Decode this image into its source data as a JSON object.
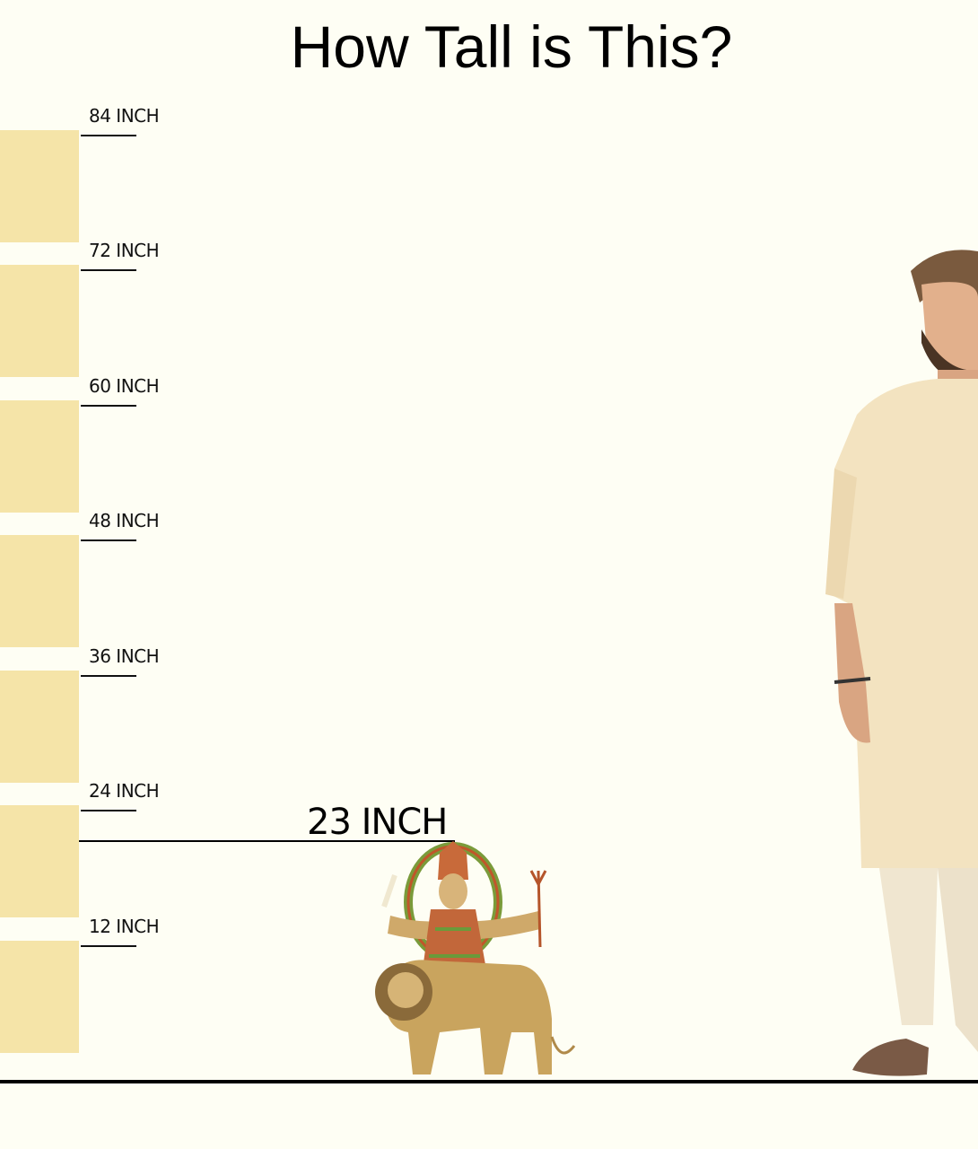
{
  "title": "How Tall is This?",
  "scale": {
    "unit": "INCH",
    "ticks": [
      {
        "value": 84,
        "label": "84 INCH"
      },
      {
        "value": 72,
        "label": "72 INCH"
      },
      {
        "value": 60,
        "label": "60 INCH"
      },
      {
        "value": 48,
        "label": "48 INCH"
      },
      {
        "value": 36,
        "label": "36 INCH"
      },
      {
        "value": 24,
        "label": "24 INCH"
      },
      {
        "value": 12,
        "label": "12 INCH"
      }
    ],
    "bar_color": "#f5e4a8"
  },
  "product": {
    "height_value": 23,
    "height_label": "23 INCH",
    "image": "durga-on-lion-statue"
  },
  "reference": {
    "image": "man-in-kurta"
  },
  "colors": {
    "background": "#fefef4",
    "ink": "#000000"
  }
}
